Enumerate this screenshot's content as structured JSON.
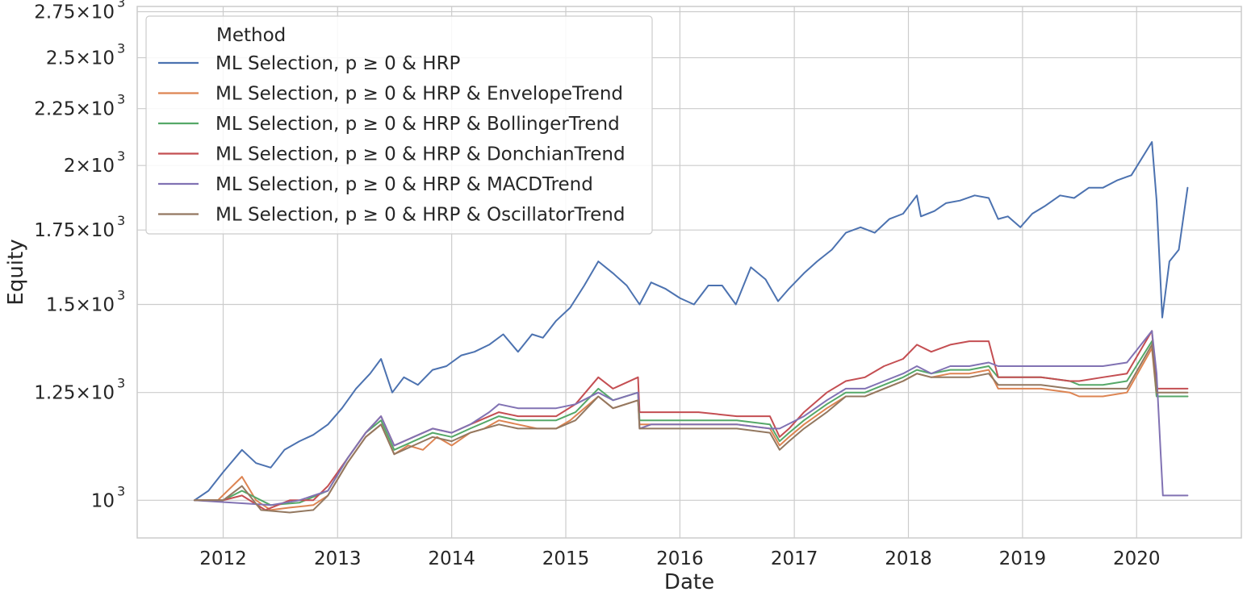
{
  "chart_data": {
    "type": "line",
    "xlabel": "Date",
    "ylabel": "Equity",
    "y_scale": "log",
    "grid": true,
    "legend": {
      "title": "Method",
      "placement": "top-left"
    },
    "xlim": [
      "2011-04-01",
      "2020-12-01"
    ],
    "ylim": [
      925,
      2780
    ],
    "x_ticks": [
      {
        "label": "2012",
        "date": "2012-01-01"
      },
      {
        "label": "2013",
        "date": "2013-01-01"
      },
      {
        "label": "2014",
        "date": "2014-01-01"
      },
      {
        "label": "2015",
        "date": "2015-01-01"
      },
      {
        "label": "2016",
        "date": "2016-01-01"
      },
      {
        "label": "2017",
        "date": "2017-01-01"
      },
      {
        "label": "2018",
        "date": "2018-01-01"
      },
      {
        "label": "2019",
        "date": "2019-01-01"
      },
      {
        "label": "2020",
        "date": "2020-01-01"
      }
    ],
    "y_ticks": [
      {
        "label": "10",
        "exp": "3",
        "mult": "",
        "value": 1000
      },
      {
        "label": "1.25",
        "exp": "3",
        "mult": "×10",
        "value": 1250
      },
      {
        "label": "1.5",
        "exp": "3",
        "mult": "×10",
        "value": 1500
      },
      {
        "label": "1.75",
        "exp": "3",
        "mult": "×10",
        "value": 1750
      },
      {
        "label": "2",
        "exp": "3",
        "mult": "×10",
        "value": 2000
      },
      {
        "label": "2.25",
        "exp": "3",
        "mult": "×10",
        "value": 2250
      },
      {
        "label": "2.5",
        "exp": "3",
        "mult": "×10",
        "value": 2500
      },
      {
        "label": "2.75",
        "exp": "3",
        "mult": "×10",
        "value": 2750
      }
    ],
    "series": [
      {
        "name": "ML Selection, p ≥ 0 & HRP",
        "color": "#4c72b0",
        "x": [
          "2011-10-01",
          "2011-11-15",
          "2012-01-01",
          "2012-03-01",
          "2012-04-15",
          "2012-06-01",
          "2012-07-15",
          "2012-09-01",
          "2012-10-15",
          "2012-12-01",
          "2013-01-15",
          "2013-03-01",
          "2013-04-15",
          "2013-05-20",
          "2013-06-25",
          "2013-08-01",
          "2013-09-15",
          "2013-11-01",
          "2013-12-15",
          "2014-02-01",
          "2014-03-15",
          "2014-05-01",
          "2014-06-15",
          "2014-08-01",
          "2014-09-15",
          "2014-10-20",
          "2014-12-01",
          "2015-01-15",
          "2015-03-01",
          "2015-04-15",
          "2015-06-01",
          "2015-07-15",
          "2015-08-25",
          "2015-10-01",
          "2015-11-15",
          "2016-01-01",
          "2016-02-15",
          "2016-04-01",
          "2016-05-15",
          "2016-06-28",
          "2016-08-15",
          "2016-10-01",
          "2016-11-10",
          "2016-12-15",
          "2017-02-01",
          "2017-03-15",
          "2017-05-01",
          "2017-06-15",
          "2017-08-01",
          "2017-09-15",
          "2017-11-01",
          "2017-12-15",
          "2018-01-28",
          "2018-02-10",
          "2018-03-25",
          "2018-05-01",
          "2018-06-15",
          "2018-08-01",
          "2018-09-15",
          "2018-10-15",
          "2018-11-15",
          "2018-12-25",
          "2019-02-01",
          "2019-03-15",
          "2019-05-01",
          "2019-06-15",
          "2019-08-01",
          "2019-09-15",
          "2019-11-01",
          "2019-12-15",
          "2020-02-19",
          "2020-03-05",
          "2020-03-23",
          "2020-04-15",
          "2020-05-15",
          "2020-06-12"
        ],
        "y": [
          1000,
          1020,
          1060,
          1110,
          1080,
          1070,
          1110,
          1130,
          1145,
          1170,
          1210,
          1260,
          1300,
          1340,
          1250,
          1290,
          1270,
          1310,
          1320,
          1350,
          1360,
          1380,
          1410,
          1360,
          1410,
          1400,
          1450,
          1490,
          1560,
          1640,
          1600,
          1560,
          1500,
          1570,
          1550,
          1520,
          1500,
          1560,
          1560,
          1500,
          1620,
          1580,
          1510,
          1550,
          1600,
          1640,
          1680,
          1740,
          1760,
          1740,
          1790,
          1810,
          1880,
          1800,
          1820,
          1850,
          1860,
          1880,
          1870,
          1790,
          1800,
          1760,
          1810,
          1840,
          1880,
          1870,
          1910,
          1910,
          1940,
          1960,
          2100,
          1860,
          1460,
          1640,
          1680,
          1910
        ]
      },
      {
        "name": "ML Selection, p ≥ 0 & HRP & EnvelopeTrend",
        "color": "#dd8452",
        "x": [
          "2011-10-01",
          "2011-12-15",
          "2012-03-01",
          "2012-04-15",
          "2012-06-01",
          "2012-08-01",
          "2012-10-15",
          "2012-12-01",
          "2013-02-01",
          "2013-04-01",
          "2013-05-20",
          "2013-07-01",
          "2013-08-15",
          "2013-10-01",
          "2013-11-15",
          "2014-01-01",
          "2014-03-01",
          "2014-04-15",
          "2014-06-01",
          "2014-08-01",
          "2014-10-01",
          "2014-12-01",
          "2015-01-15",
          "2015-04-15",
          "2015-06-01",
          "2015-08-20",
          "2015-08-25",
          "2016-03-01",
          "2016-07-01",
          "2016-10-15",
          "2016-11-15",
          "2016-12-15",
          "2017-02-01",
          "2017-04-15",
          "2017-06-15",
          "2017-08-15",
          "2017-10-15",
          "2017-12-15",
          "2018-01-28",
          "2018-03-15",
          "2018-05-15",
          "2018-07-15",
          "2018-09-15",
          "2018-10-15",
          "2019-03-01",
          "2019-06-01",
          "2019-07-01",
          "2019-09-15",
          "2019-12-01",
          "2020-02-19",
          "2020-03-05",
          "2020-06-12"
        ],
        "y": [
          1000,
          1000,
          1050,
          1000,
          980,
          985,
          990,
          1010,
          1080,
          1140,
          1170,
          1100,
          1120,
          1110,
          1140,
          1120,
          1150,
          1160,
          1180,
          1170,
          1160,
          1160,
          1180,
          1240,
          1210,
          1230,
          1170,
          1170,
          1170,
          1160,
          1120,
          1140,
          1170,
          1210,
          1240,
          1240,
          1260,
          1280,
          1300,
          1290,
          1300,
          1300,
          1310,
          1260,
          1260,
          1250,
          1240,
          1240,
          1250,
          1370,
          1240,
          1240
        ]
      },
      {
        "name": "ML Selection, p ≥ 0 & HRP & BollingerTrend",
        "color": "#55a868",
        "x": [
          "2011-10-01",
          "2012-01-01",
          "2012-03-01",
          "2012-06-01",
          "2012-09-01",
          "2012-12-01",
          "2013-02-01",
          "2013-04-01",
          "2013-05-20",
          "2013-07-01",
          "2013-09-01",
          "2013-11-01",
          "2014-01-01",
          "2014-03-01",
          "2014-06-01",
          "2014-08-01",
          "2014-10-01",
          "2014-12-01",
          "2015-02-01",
          "2015-04-15",
          "2015-06-01",
          "2015-08-20",
          "2015-08-25",
          "2016-03-01",
          "2016-07-01",
          "2016-10-15",
          "2016-11-15",
          "2016-12-15",
          "2017-02-01",
          "2017-04-15",
          "2017-06-15",
          "2017-08-15",
          "2017-10-15",
          "2017-12-15",
          "2018-01-28",
          "2018-03-15",
          "2018-05-15",
          "2018-07-15",
          "2018-09-15",
          "2018-10-15",
          "2019-03-01",
          "2019-06-01",
          "2019-07-01",
          "2019-09-15",
          "2019-12-01",
          "2020-02-19",
          "2020-03-05",
          "2020-06-12"
        ],
        "y": [
          1000,
          1000,
          1020,
          990,
          995,
          1020,
          1090,
          1150,
          1180,
          1110,
          1130,
          1150,
          1140,
          1160,
          1190,
          1180,
          1180,
          1180,
          1200,
          1260,
          1230,
          1250,
          1180,
          1180,
          1180,
          1170,
          1130,
          1150,
          1180,
          1220,
          1250,
          1250,
          1270,
          1290,
          1310,
          1300,
          1310,
          1310,
          1320,
          1290,
          1290,
          1280,
          1270,
          1270,
          1280,
          1390,
          1240,
          1240
        ]
      },
      {
        "name": "ML Selection, p ≥ 0 & HRP & DonchianTrend",
        "color": "#c44e52",
        "x": [
          "2011-10-01",
          "2012-01-01",
          "2012-03-01",
          "2012-05-15",
          "2012-08-01",
          "2012-10-15",
          "2012-12-01",
          "2013-02-01",
          "2013-04-01",
          "2013-05-20",
          "2013-07-01",
          "2013-09-01",
          "2013-11-01",
          "2014-01-01",
          "2014-03-01",
          "2014-06-01",
          "2014-08-01",
          "2014-10-01",
          "2014-12-01",
          "2015-02-01",
          "2015-04-15",
          "2015-06-01",
          "2015-08-20",
          "2015-08-25",
          "2016-03-01",
          "2016-07-01",
          "2016-10-15",
          "2016-11-15",
          "2016-12-15",
          "2017-02-01",
          "2017-04-15",
          "2017-06-15",
          "2017-08-15",
          "2017-10-15",
          "2017-12-15",
          "2018-01-28",
          "2018-03-15",
          "2018-05-15",
          "2018-07-15",
          "2018-09-15",
          "2018-10-15",
          "2019-03-01",
          "2019-06-01",
          "2019-07-01",
          "2019-09-15",
          "2019-12-01",
          "2020-02-19",
          "2020-03-05",
          "2020-06-12"
        ],
        "y": [
          1000,
          1000,
          1010,
          980,
          1000,
          1000,
          1030,
          1090,
          1150,
          1190,
          1120,
          1140,
          1160,
          1150,
          1170,
          1200,
          1190,
          1190,
          1190,
          1220,
          1290,
          1260,
          1290,
          1200,
          1200,
          1190,
          1190,
          1140,
          1160,
          1200,
          1250,
          1280,
          1290,
          1320,
          1340,
          1380,
          1360,
          1380,
          1390,
          1390,
          1290,
          1290,
          1280,
          1280,
          1290,
          1300,
          1420,
          1260,
          1260
        ]
      },
      {
        "name": "ML Selection, p ≥ 0 & HRP & MACDTrend",
        "color": "#8172b3",
        "x": [
          "2011-10-01",
          "2012-06-01",
          "2012-09-01",
          "2012-12-01",
          "2013-02-01",
          "2013-04-01",
          "2013-05-20",
          "2013-07-01",
          "2013-09-01",
          "2013-11-01",
          "2014-01-01",
          "2014-03-01",
          "2014-05-01",
          "2014-06-01",
          "2014-08-01",
          "2014-12-01",
          "2015-02-01",
          "2015-04-15",
          "2015-06-01",
          "2015-08-20",
          "2015-08-25",
          "2015-10-01",
          "2016-03-01",
          "2016-07-01",
          "2016-10-15",
          "2016-11-15",
          "2017-02-01",
          "2017-04-15",
          "2017-06-15",
          "2017-08-15",
          "2017-10-15",
          "2017-12-15",
          "2018-01-28",
          "2018-03-15",
          "2018-05-15",
          "2018-07-15",
          "2018-09-15",
          "2018-10-15",
          "2019-09-15",
          "2019-12-01",
          "2020-02-19",
          "2020-03-05",
          "2020-03-18",
          "2020-03-25",
          "2020-06-12"
        ],
        "y": [
          1000,
          990,
          1000,
          1020,
          1090,
          1150,
          1190,
          1120,
          1140,
          1160,
          1150,
          1170,
          1200,
          1220,
          1210,
          1210,
          1220,
          1250,
          1230,
          1250,
          1160,
          1170,
          1170,
          1170,
          1160,
          1160,
          1190,
          1230,
          1260,
          1260,
          1280,
          1300,
          1320,
          1300,
          1320,
          1320,
          1330,
          1320,
          1320,
          1330,
          1420,
          1300,
          1100,
          1010,
          1010
        ]
      },
      {
        "name": "ML Selection, p ≥ 0 & HRP & OscillatorTrend",
        "color": "#937860",
        "x": [
          "2011-10-01",
          "2012-01-01",
          "2012-03-01",
          "2012-05-01",
          "2012-08-01",
          "2012-10-15",
          "2012-12-01",
          "2013-02-01",
          "2013-04-01",
          "2013-05-20",
          "2013-07-01",
          "2013-09-01",
          "2013-11-01",
          "2014-01-01",
          "2014-03-01",
          "2014-06-01",
          "2014-08-01",
          "2014-10-01",
          "2014-12-01",
          "2015-02-01",
          "2015-04-15",
          "2015-06-01",
          "2015-08-20",
          "2015-08-25",
          "2016-03-01",
          "2016-07-01",
          "2016-10-15",
          "2016-11-15",
          "2016-12-15",
          "2017-02-01",
          "2017-04-15",
          "2017-06-15",
          "2017-08-15",
          "2017-10-15",
          "2017-12-15",
          "2018-01-28",
          "2018-03-15",
          "2018-05-15",
          "2018-07-15",
          "2018-09-15",
          "2018-10-15",
          "2019-03-01",
          "2019-06-01",
          "2019-07-01",
          "2019-09-15",
          "2019-12-01",
          "2020-02-19",
          "2020-03-05",
          "2020-06-12"
        ],
        "y": [
          1000,
          1000,
          1030,
          980,
          975,
          980,
          1010,
          1080,
          1140,
          1170,
          1100,
          1120,
          1140,
          1130,
          1150,
          1170,
          1160,
          1160,
          1160,
          1180,
          1240,
          1210,
          1230,
          1160,
          1160,
          1160,
          1150,
          1110,
          1130,
          1160,
          1200,
          1240,
          1240,
          1260,
          1280,
          1300,
          1290,
          1290,
          1290,
          1300,
          1270,
          1270,
          1260,
          1260,
          1260,
          1260,
          1380,
          1250,
          1250
        ]
      }
    ]
  }
}
